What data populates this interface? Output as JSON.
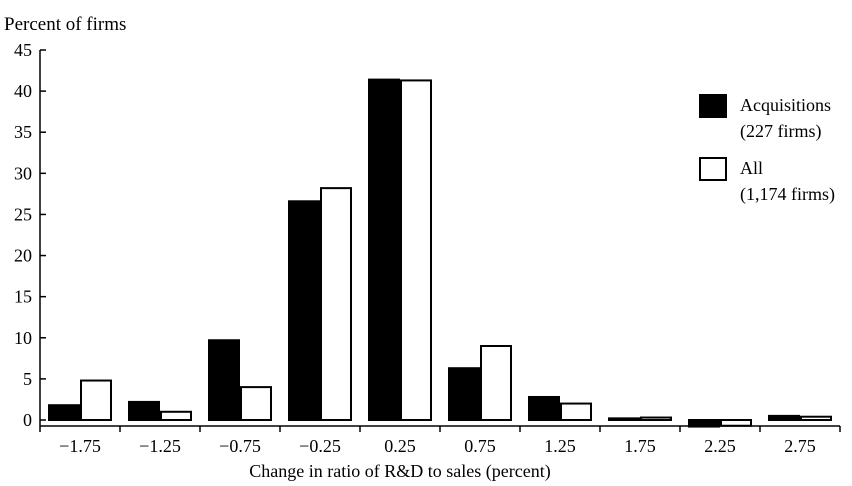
{
  "chart_data": {
    "type": "bar",
    "ylabel": "Percent of firms",
    "xlabel": "Change in ratio of R&D to sales (percent)",
    "categories": [
      "-1.75",
      "-1.25",
      "-0.75",
      "-0.25",
      "0.25",
      "0.75",
      "1.25",
      "1.75",
      "2.25",
      "2.75"
    ],
    "series": [
      {
        "name": "Acquisitions",
        "note": "(227 firms)",
        "color": "#000000",
        "values": [
          1.8,
          2.2,
          9.7,
          26.6,
          41.4,
          6.3,
          2.8,
          0.2,
          -0.8,
          0.5
        ]
      },
      {
        "name": "All",
        "note": "(1,174 firms)",
        "color": "#ffffff",
        "values": [
          4.8,
          1.0,
          4.0,
          28.2,
          41.3,
          9.0,
          2.0,
          0.3,
          -0.7,
          0.4
        ]
      }
    ],
    "yticks": [
      0,
      5,
      10,
      15,
      20,
      25,
      30,
      35,
      40,
      45
    ],
    "ylim": [
      0,
      45
    ],
    "legend_position": "right",
    "grid": false
  }
}
